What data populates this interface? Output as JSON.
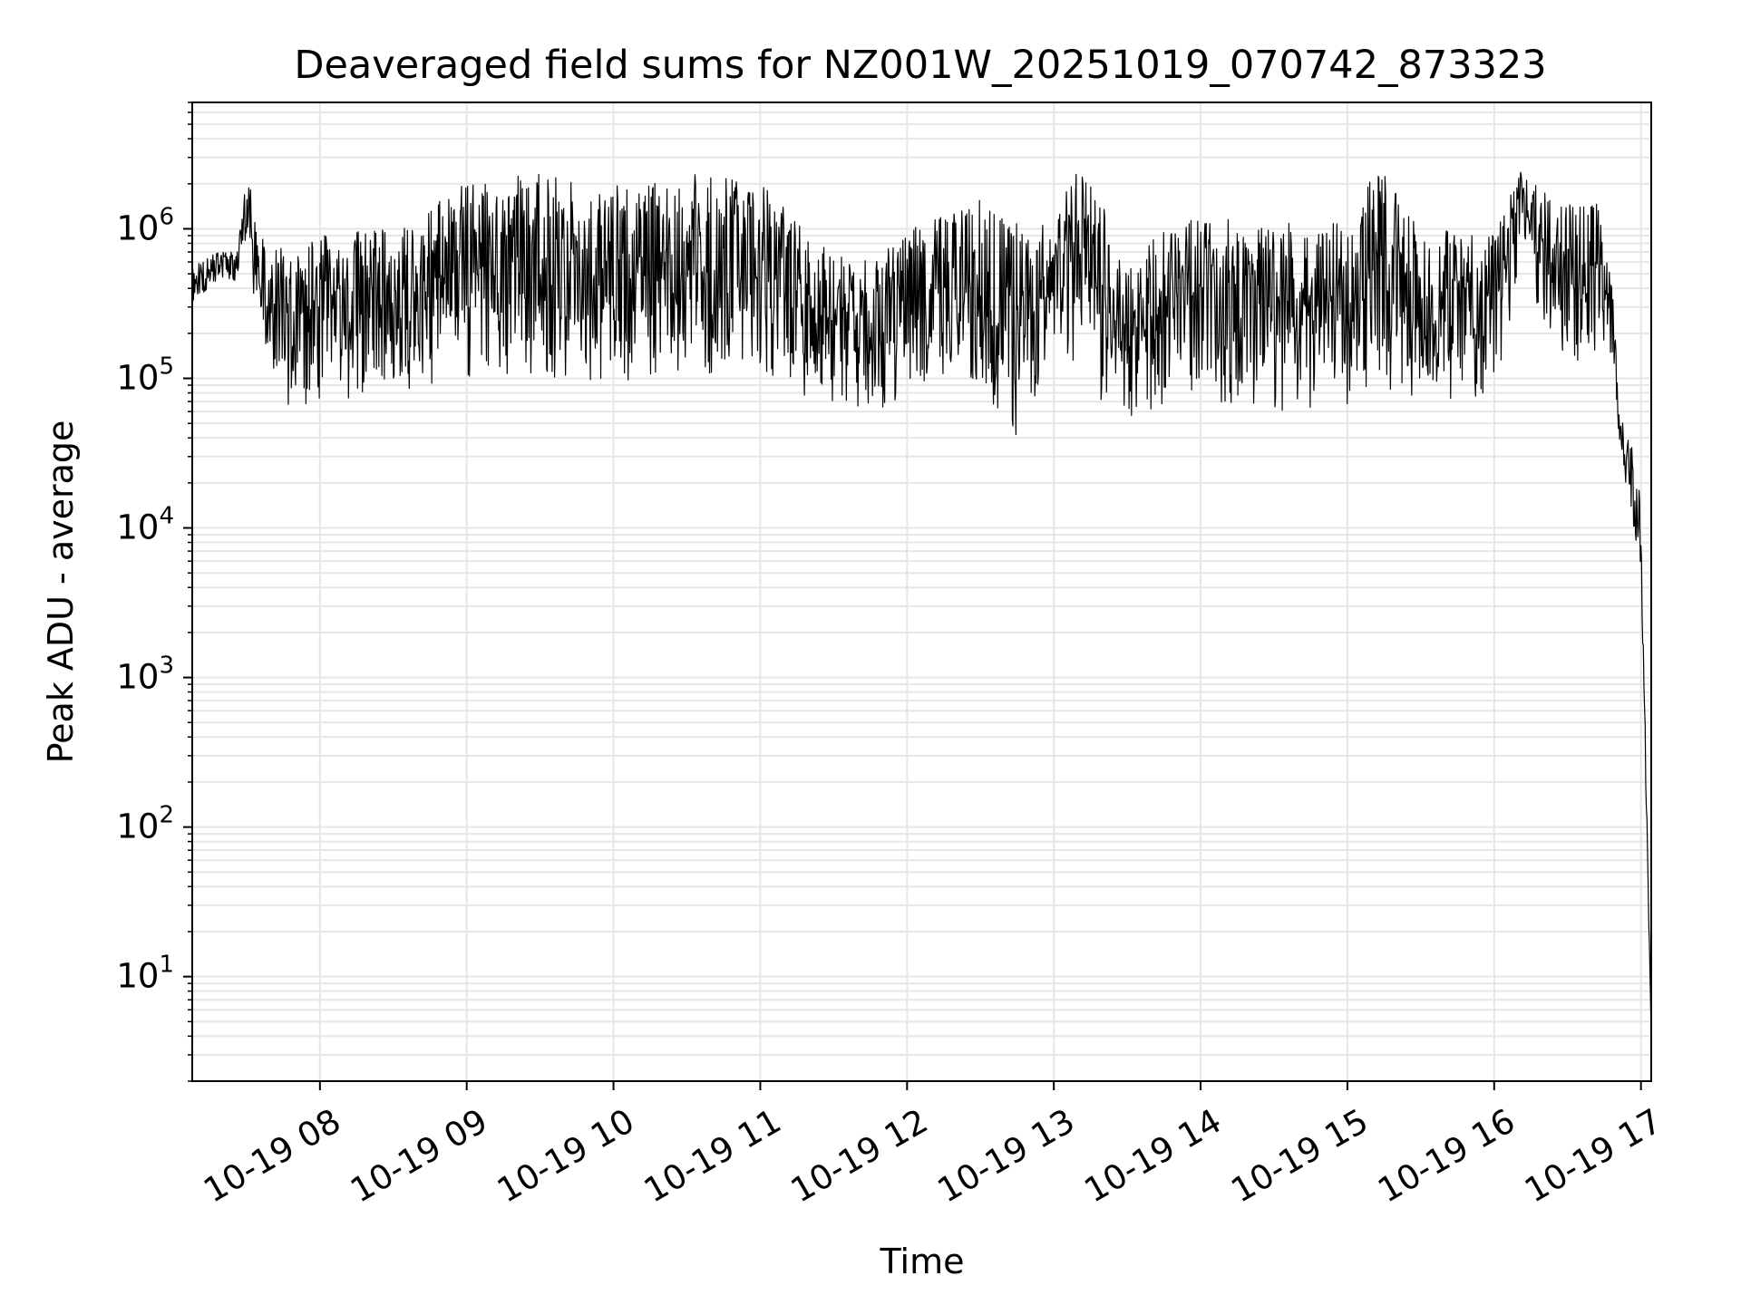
{
  "chart_data": {
    "type": "line",
    "title": "Deaveraged field sums for NZ001W_20251019_070742_873323",
    "xlabel": "Time",
    "ylabel": "Peak ADU - average",
    "yscale": "log",
    "ylim": [
      2,
      7000000
    ],
    "xlim_hours": [
      7.13,
      17.07
    ],
    "grid": true,
    "line_color": "#000000",
    "grid_color": "#e6e6e6",
    "x_ticks": [
      {
        "hour": 8,
        "label": "10-19 08"
      },
      {
        "hour": 9,
        "label": "10-19 09"
      },
      {
        "hour": 10,
        "label": "10-19 10"
      },
      {
        "hour": 11,
        "label": "10-19 11"
      },
      {
        "hour": 12,
        "label": "10-19 12"
      },
      {
        "hour": 13,
        "label": "10-19 13"
      },
      {
        "hour": 14,
        "label": "10-19 14"
      },
      {
        "hour": 15,
        "label": "10-19 15"
      },
      {
        "hour": 16,
        "label": "10-19 16"
      },
      {
        "hour": 17,
        "label": "10-19 17"
      }
    ],
    "y_ticks": [
      {
        "value": 10,
        "base": "10",
        "exp": "1"
      },
      {
        "value": 100,
        "base": "10",
        "exp": "2"
      },
      {
        "value": 1000,
        "base": "10",
        "exp": "3"
      },
      {
        "value": 10000,
        "base": "10",
        "exp": "4"
      },
      {
        "value": 100000,
        "base": "10",
        "exp": "5"
      },
      {
        "value": 1000000,
        "base": "10",
        "exp": "6"
      }
    ],
    "envelope": {
      "description": "dense noisy series; hour -> [low, high] range of Peak ADU - average",
      "points": [
        {
          "hour": 7.13,
          "low": 320000,
          "high": 550000
        },
        {
          "hour": 7.3,
          "low": 450000,
          "high": 700000
        },
        {
          "hour": 7.42,
          "low": 450000,
          "high": 700000
        },
        {
          "hour": 7.5,
          "low": 600000,
          "high": 2300000
        },
        {
          "hour": 7.6,
          "low": 150000,
          "high": 1000000
        },
        {
          "hour": 7.8,
          "low": 60000,
          "high": 700000
        },
        {
          "hour": 8.0,
          "low": 70000,
          "high": 900000
        },
        {
          "hour": 8.5,
          "low": 80000,
          "high": 1200000
        },
        {
          "hour": 9.0,
          "low": 90000,
          "high": 2000000
        },
        {
          "hour": 9.5,
          "low": 100000,
          "high": 2400000
        },
        {
          "hour": 10.0,
          "low": 90000,
          "high": 2000000
        },
        {
          "hour": 10.5,
          "low": 100000,
          "high": 2400000
        },
        {
          "hour": 11.0,
          "low": 100000,
          "high": 2000000
        },
        {
          "hour": 11.5,
          "low": 60000,
          "high": 700000
        },
        {
          "hour": 11.7,
          "low": 50000,
          "high": 600000
        },
        {
          "hour": 12.0,
          "low": 80000,
          "high": 1000000
        },
        {
          "hour": 12.5,
          "low": 90000,
          "high": 1600000
        },
        {
          "hour": 12.8,
          "low": 30000,
          "high": 1000000
        },
        {
          "hour": 13.0,
          "low": 200000,
          "high": 1200000
        },
        {
          "hour": 13.2,
          "low": 100000,
          "high": 3300000
        },
        {
          "hour": 13.5,
          "low": 40000,
          "high": 600000
        },
        {
          "hour": 13.8,
          "low": 70000,
          "high": 1200000
        },
        {
          "hour": 14.0,
          "low": 70000,
          "high": 1200000
        },
        {
          "hour": 14.5,
          "low": 60000,
          "high": 1100000
        },
        {
          "hour": 15.0,
          "low": 60000,
          "high": 1100000
        },
        {
          "hour": 15.2,
          "low": 80000,
          "high": 3000000
        },
        {
          "hour": 15.5,
          "low": 70000,
          "high": 1000000
        },
        {
          "hour": 16.0,
          "low": 70000,
          "high": 1000000
        },
        {
          "hour": 16.2,
          "low": 600000,
          "high": 2800000
        },
        {
          "hour": 16.4,
          "low": 150000,
          "high": 1500000
        },
        {
          "hour": 16.7,
          "low": 100000,
          "high": 1500000
        },
        {
          "hour": 16.8,
          "low": 150000,
          "high": 600000
        },
        {
          "hour": 16.85,
          "low": 40000,
          "high": 60000
        },
        {
          "hour": 16.95,
          "low": 8000,
          "high": 40000
        },
        {
          "hour": 17.0,
          "low": 5000,
          "high": 15000
        },
        {
          "hour": 17.07,
          "low": 4,
          "high": 4
        }
      ]
    }
  }
}
